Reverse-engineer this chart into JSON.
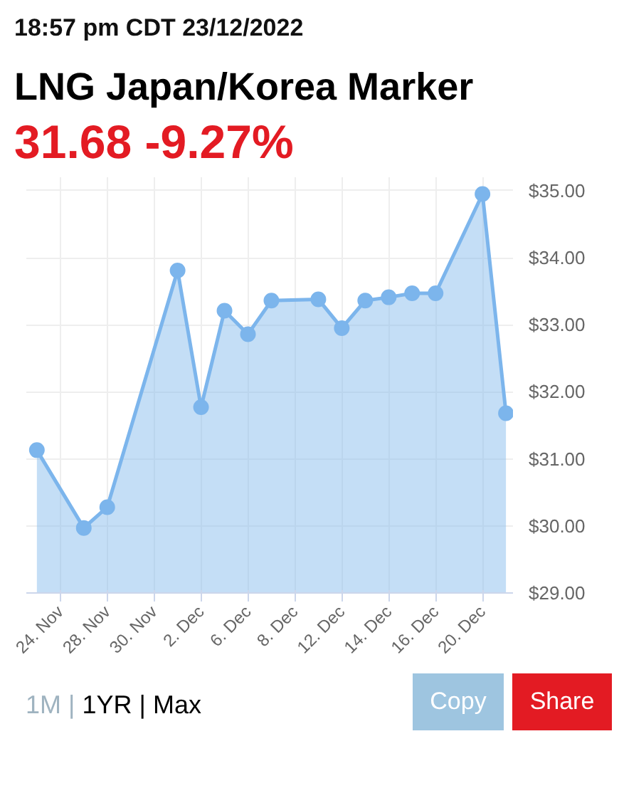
{
  "chart_data": {
    "type": "area",
    "title": "LNG Japan/Korea Marker",
    "annotations": [
      "18:57 pm CDT 23/12/2022",
      "31.68 -9.27%",
      "1M",
      "|",
      "1YR",
      "|",
      "Max",
      "Copy",
      "Share"
    ],
    "categories": [
      null,
      "24. Nov",
      null,
      "28. Nov",
      null,
      "30. Nov",
      null,
      "2. Dec",
      null,
      "6. Dec",
      null,
      "8. Dec",
      null,
      "12. Dec",
      null,
      "14. Dec",
      null,
      "16. Dec",
      null,
      "20. Dec",
      null
    ],
    "series": [
      {
        "color": "#7cb5ec",
        "values": [
          31.13,
          null,
          29.97,
          30.28,
          null,
          null,
          33.81,
          31.77,
          33.21,
          32.86,
          33.36,
          null,
          33.38,
          32.95,
          33.36,
          33.41,
          33.47,
          33.47,
          null,
          34.95,
          31.68
        ]
      }
    ],
    "ylim": [
      29,
      35.2
    ],
    "yticks": [
      {
        "value": 29,
        "label": "$29.00"
      },
      {
        "value": 30,
        "label": "$30.00"
      },
      {
        "value": 31,
        "label": "$31.00"
      },
      {
        "value": 32,
        "label": "$32.00"
      },
      {
        "value": 33,
        "label": "$33.00"
      },
      {
        "value": 34,
        "label": "$34.00"
      },
      {
        "value": 35,
        "label": "$35.00"
      }
    ],
    "grid": true,
    "marker": "circle"
  }
}
